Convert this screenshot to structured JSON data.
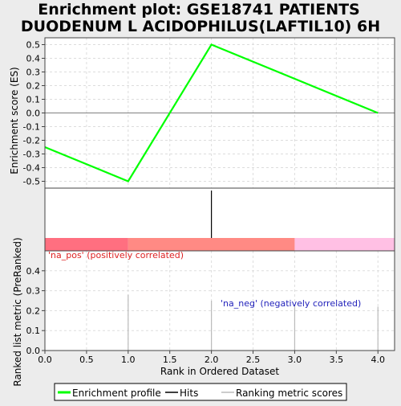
{
  "chart_data": {
    "type": "line",
    "title_lines": [
      "Enrichment plot: GSE18741 PATIENTS",
      "DUODENUM L ACIDOPHILUS(LAFTIL10) 6H"
    ],
    "es_panel": {
      "ylabel": "Enrichment score (ES)",
      "ylim": [
        -0.55,
        0.55
      ],
      "yticks": [
        -0.5,
        -0.4,
        -0.3,
        -0.2,
        -0.1,
        0.0,
        0.1,
        0.2,
        0.3,
        0.4,
        0.5
      ],
      "ytick_labels": [
        "-0.5",
        "-0.4",
        "-0.3",
        "-0.2",
        "-0.1",
        "0.0",
        "0.1",
        "0.2",
        "0.3",
        "0.4",
        "0.5"
      ],
      "series": [
        {
          "name": "Enrichment profile",
          "color": "#00ff00",
          "x": [
            0,
            1,
            2,
            4
          ],
          "y": [
            -0.25,
            -0.5,
            0.5,
            0.0
          ]
        }
      ]
    },
    "hits": {
      "x": [
        2
      ],
      "color": "#000000"
    },
    "color_bar": {
      "segments": [
        {
          "from": 0,
          "to": 1,
          "color": "#ff6f80"
        },
        {
          "from": 1,
          "to": 3,
          "color": "#ff8a84"
        },
        {
          "from": 3,
          "to": 4.2,
          "color": "#ffc0e4"
        }
      ]
    },
    "rank_panel": {
      "ylabel": "Ranked list metric (PreRanked)",
      "ylim": [
        0,
        0.5
      ],
      "yticks": [
        0.0,
        0.1,
        0.2,
        0.3,
        0.4
      ],
      "ytick_labels": [
        "0.0",
        "0.1",
        "0.2",
        "0.3",
        "0.4"
      ],
      "bars": {
        "x": [
          1,
          2,
          3,
          4
        ],
        "values": [
          0.28,
          0.25,
          0.23,
          0.22
        ],
        "color": "#bbbbbb"
      },
      "pos_label": "'na_pos' (positively correlated)",
      "pos_color": "#dd2222",
      "neg_label": "'na_neg' (negatively correlated)",
      "neg_color": "#2222bb"
    },
    "xlabel": "Rank in Ordered Dataset",
    "xlim": [
      0,
      4.2
    ],
    "xticks": [
      0.0,
      0.5,
      1.0,
      1.5,
      2.0,
      2.5,
      3.0,
      3.5,
      4.0
    ],
    "xtick_labels": [
      "0.0",
      "0.5",
      "1.0",
      "1.5",
      "2.0",
      "2.5",
      "3.0",
      "3.5",
      "4.0"
    ],
    "legend": [
      {
        "label": "Enrichment profile",
        "color": "#00ff00",
        "kind": "thick-line"
      },
      {
        "label": "Hits",
        "color": "#000000",
        "kind": "line"
      },
      {
        "label": "Ranking metric scores",
        "color": "#bbbbbb",
        "kind": "line"
      }
    ]
  }
}
